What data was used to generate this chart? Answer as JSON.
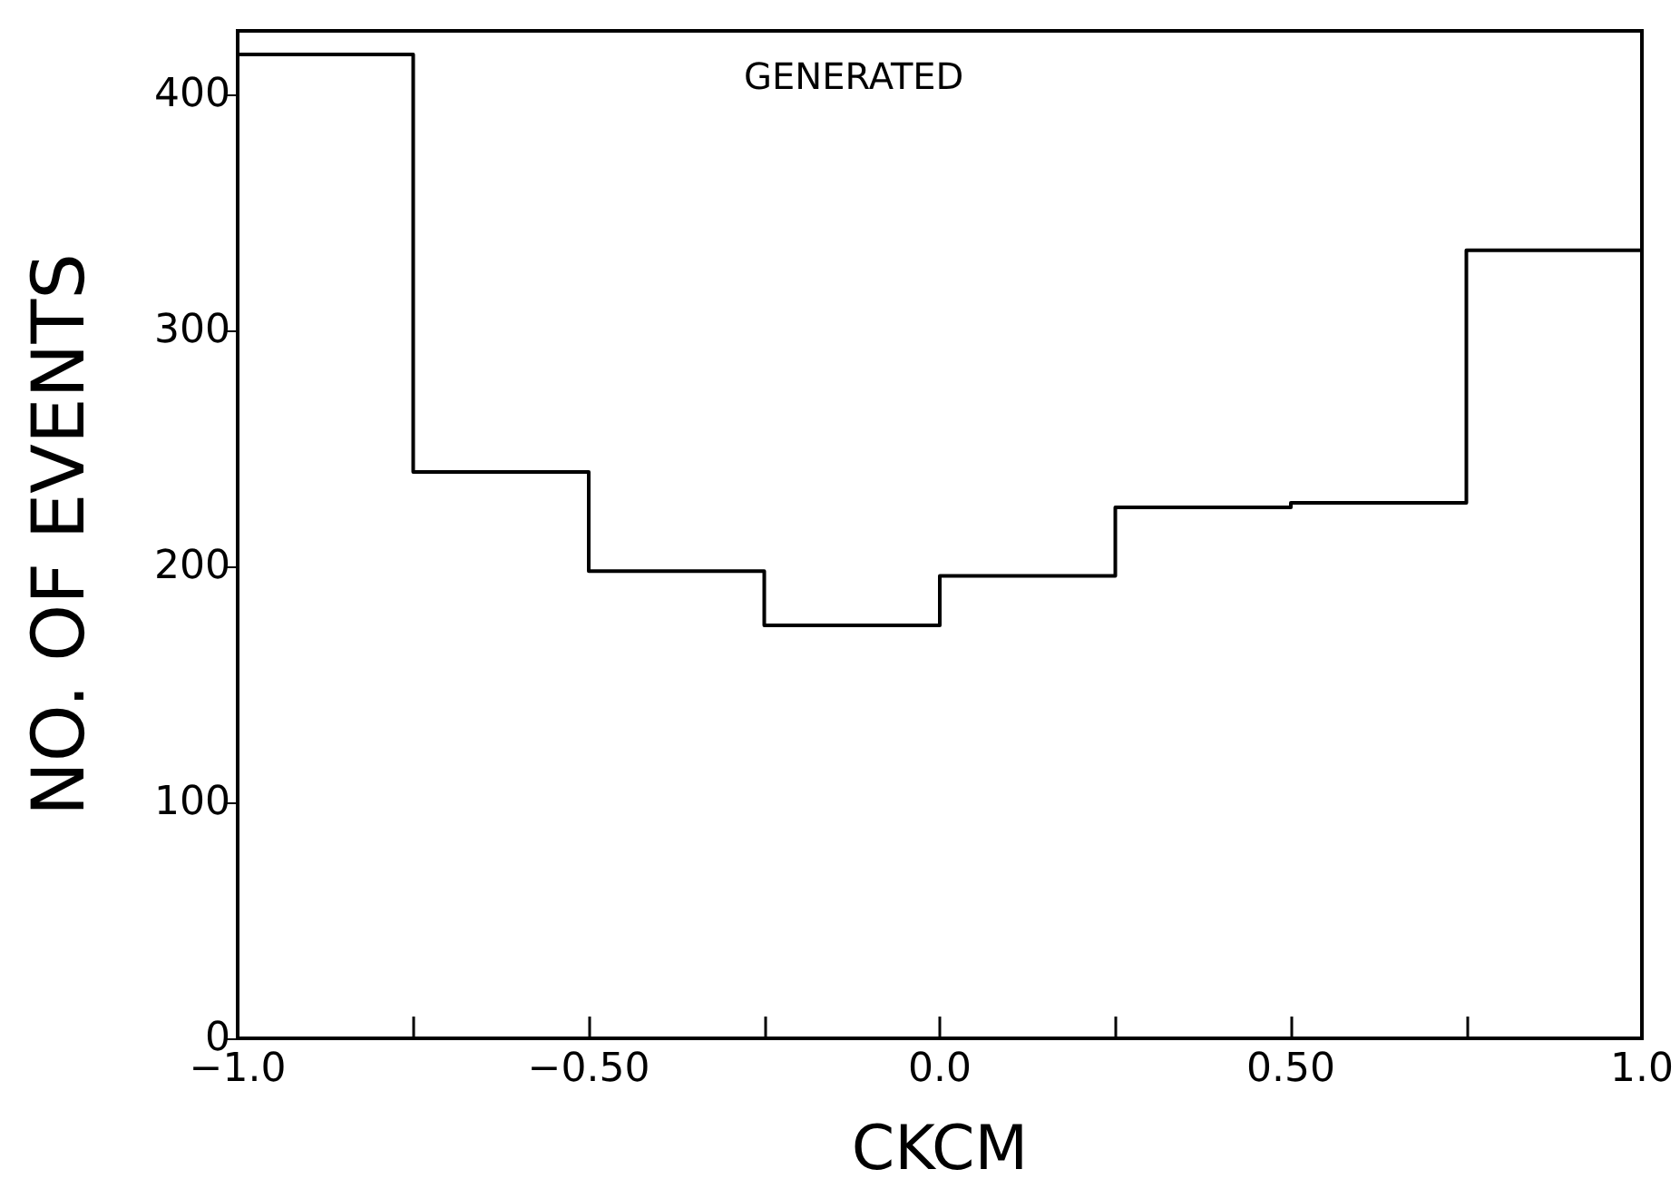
{
  "chart_data": {
    "type": "histogram",
    "xlabel": "CKCM",
    "ylabel": "NO. OF EVENTS",
    "annotations": [
      "GENERATED"
    ],
    "bins": [
      -1.0,
      -0.75,
      -0.5,
      -0.25,
      0.0,
      0.25,
      0.5,
      0.75,
      1.0
    ],
    "values": [
      417,
      240,
      198,
      175,
      196,
      225,
      227,
      334
    ],
    "color": "#000000",
    "xlim": [
      -1.0,
      1.0
    ],
    "xticks": [
      {
        "value": -1.0,
        "label": "−1.0"
      },
      {
        "value": -0.75,
        "label": null
      },
      {
        "value": -0.5,
        "label": "−0.50"
      },
      {
        "value": -0.25,
        "label": null
      },
      {
        "value": 0.0,
        "label": "0.0"
      },
      {
        "value": 0.25,
        "label": null
      },
      {
        "value": 0.5,
        "label": "0.50"
      },
      {
        "value": 0.75,
        "label": null
      },
      {
        "value": 1.0,
        "label": "1.0"
      }
    ],
    "ylim": [
      0,
      427
    ],
    "yticks": [
      0,
      100,
      200,
      300,
      400
    ],
    "grid": false
  }
}
